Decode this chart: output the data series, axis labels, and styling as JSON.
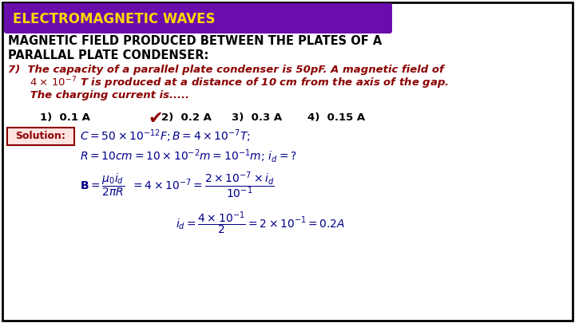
{
  "bg_color": "#ffffff",
  "border_color": "#000000",
  "title_bg": "#6a0dad",
  "title_color": "#FFD700",
  "title_text": "ELECTROMAGNETIC WAVES",
  "heading1": "MAGNETIC FIELD PRODUCED BETWEEN THE PLATES OF A",
  "heading2": "PARALLAL PLATE CONDENSER:",
  "heading_color": "#000000",
  "question_color": "#8B0000",
  "options_color": "#000000",
  "solution_box_border": "#8B0000",
  "solution_box_fill": "#FFE4E1",
  "solution_label": "Solution:",
  "math_color": "#00008B",
  "checkmark_color": "#8B0000"
}
